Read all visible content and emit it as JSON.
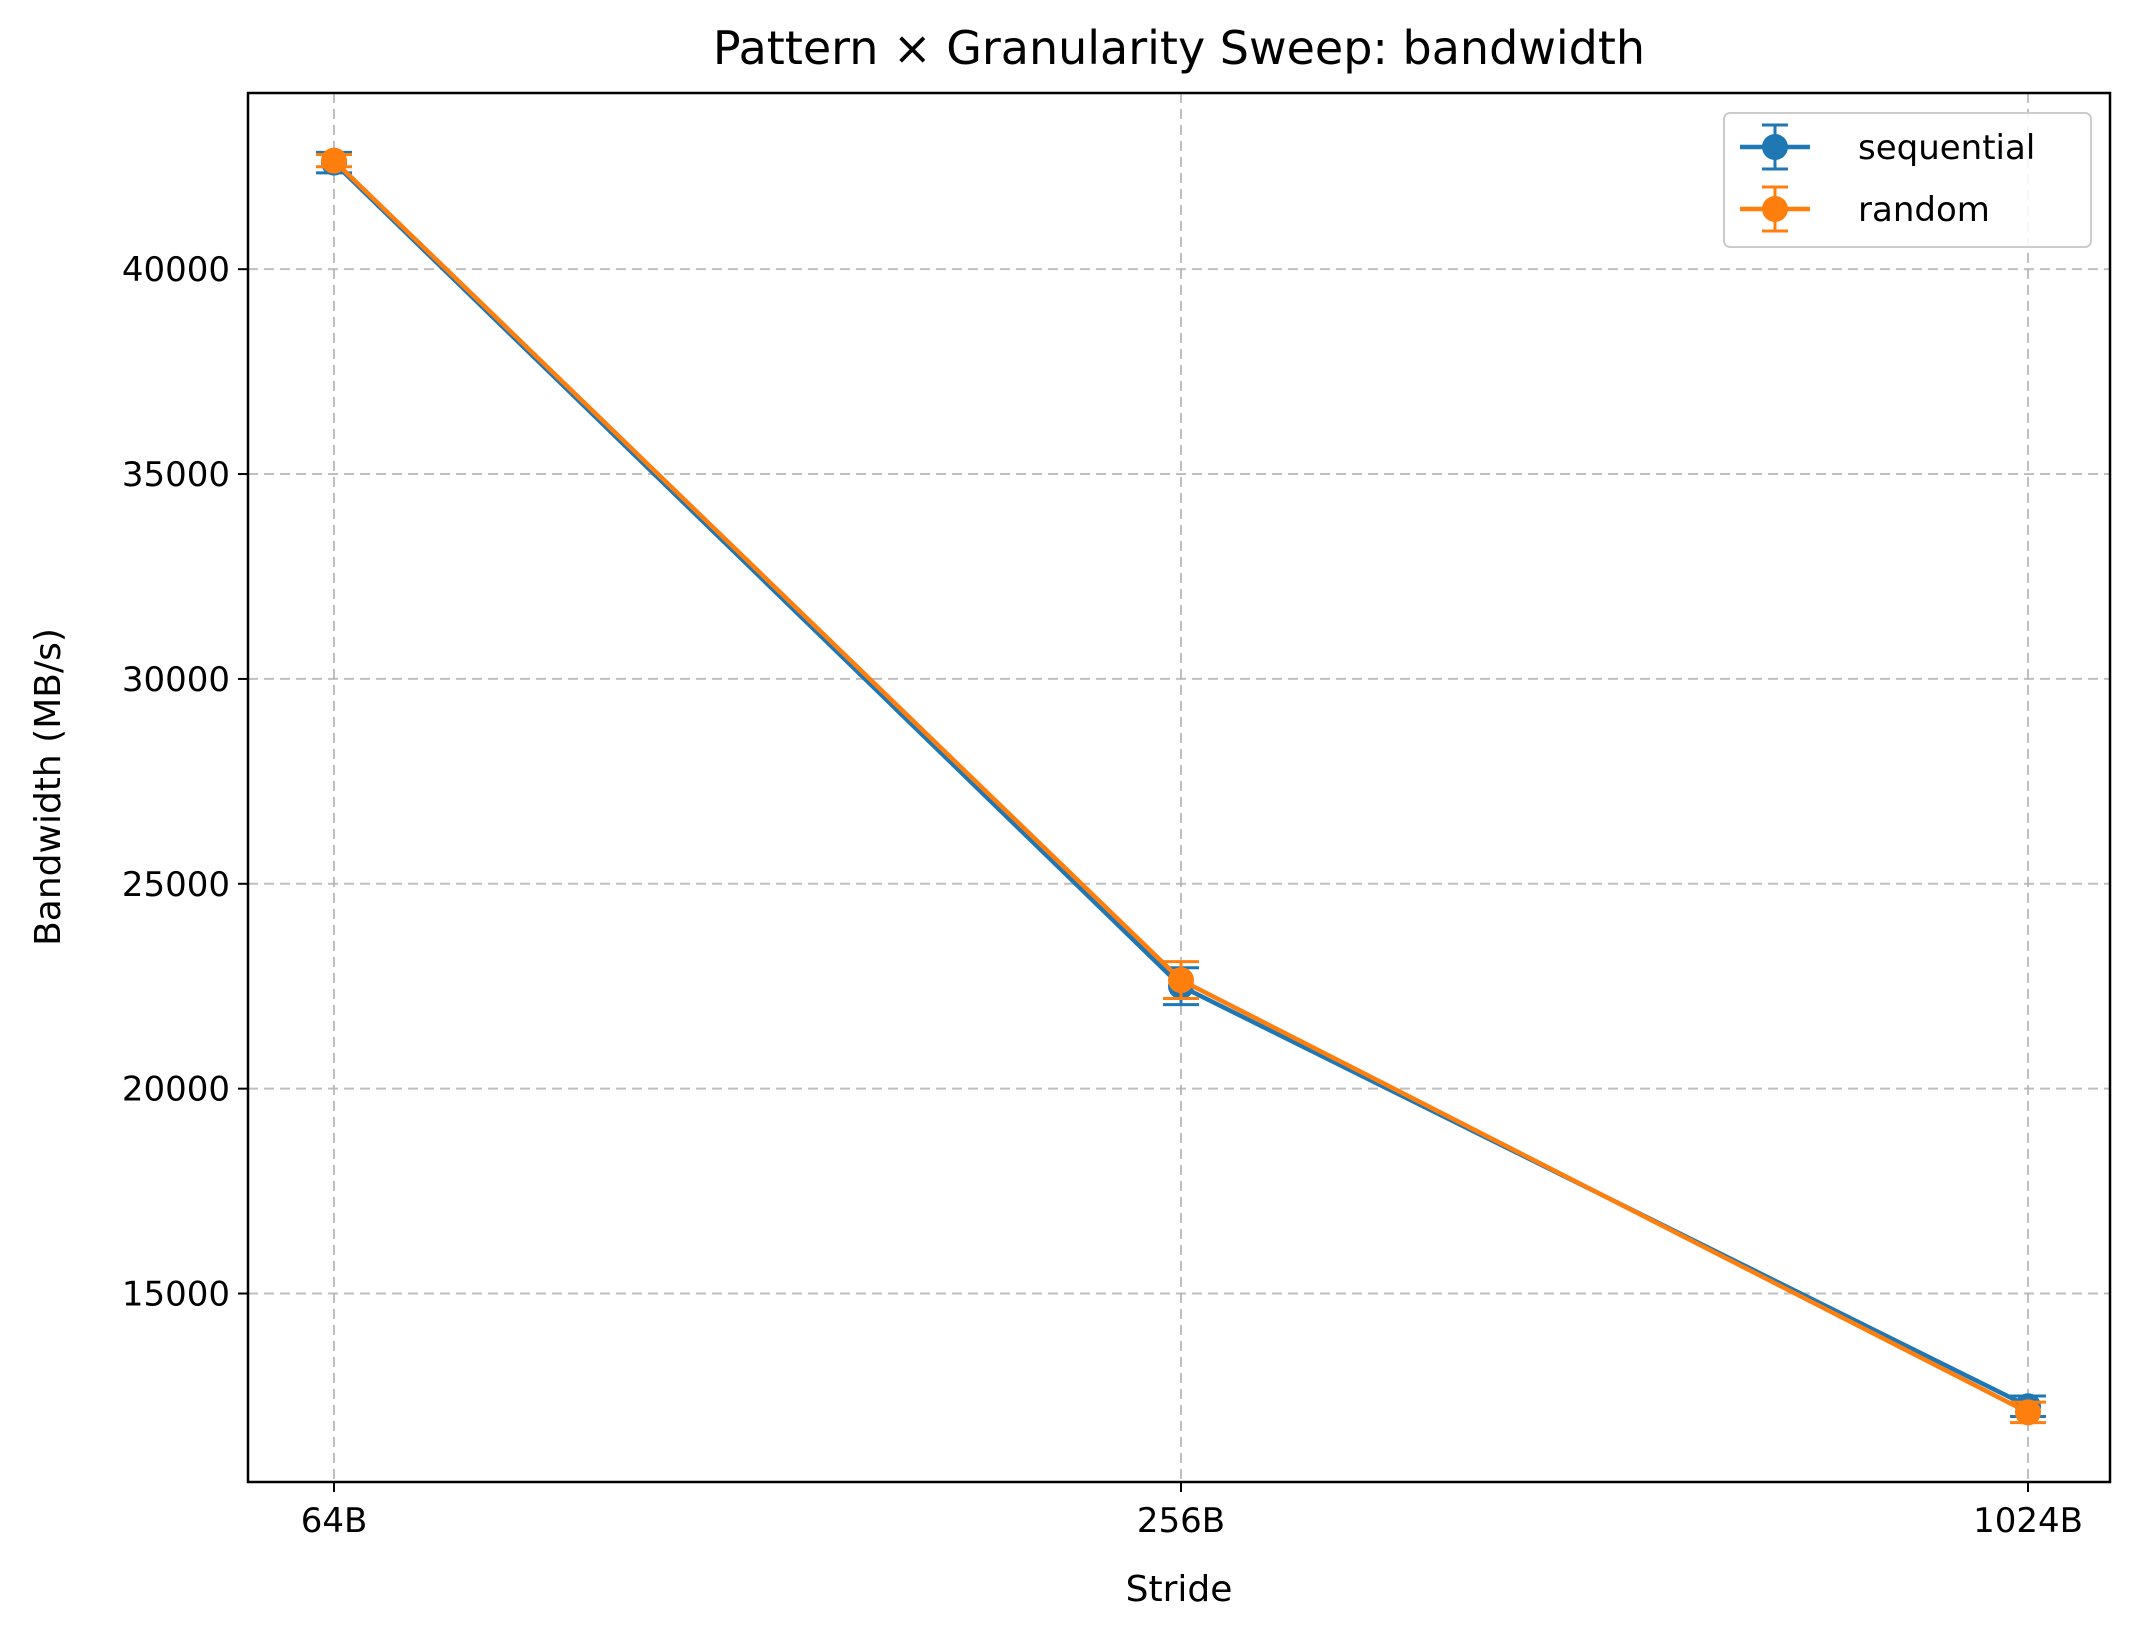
{
  "chart_data": {
    "type": "line",
    "title": "Pattern × Granularity Sweep: bandwidth",
    "xlabel": "Stride",
    "ylabel": "Bandwidth (MB/s)",
    "categories": [
      "64B",
      "256B",
      "1024B"
    ],
    "ylim": [
      10400,
      44300
    ],
    "yticks": [
      15000,
      20000,
      25000,
      30000,
      35000,
      40000
    ],
    "grid": true,
    "legend_position": "top-right",
    "series": [
      {
        "name": "sequential",
        "color": "#1f77b4",
        "values": [
          42600,
          22500,
          12250
        ],
        "errors": [
          250,
          450,
          250
        ]
      },
      {
        "name": "random",
        "color": "#ff7f0e",
        "values": [
          42650,
          22650,
          12100
        ],
        "errors": [
          150,
          450,
          250
        ]
      }
    ]
  }
}
